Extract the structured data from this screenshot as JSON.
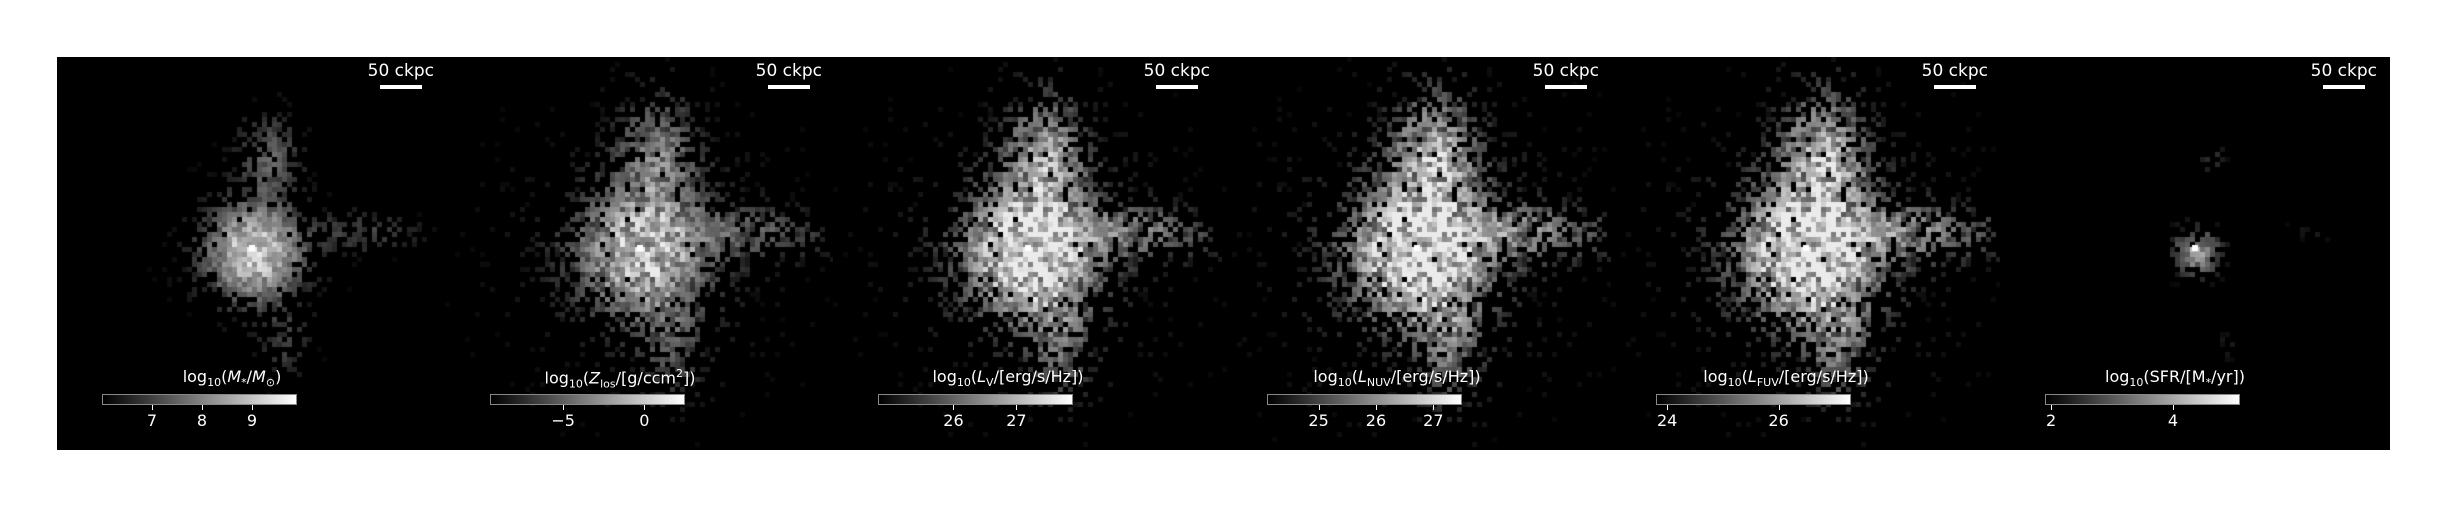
{
  "figure": {
    "panels": [
      {
        "id": "stellar-mass",
        "scale_label": "50 ckpc",
        "colorbar_title_html": "log<sub>10</sub>(<i>M</i><sub>*</sub>/<i>M</i><sub>⊙</sub>)",
        "colorbar_range": [
          6.0,
          9.9
        ],
        "ticks": [
          "7",
          "8",
          "9"
        ],
        "tick_values": [
          7,
          8,
          9
        ]
      },
      {
        "id": "metallicity",
        "scale_label": "50 ckpc",
        "colorbar_title_html": "log<sub>10</sub>(<i>Z</i><sub>los</sub>/[g/ccm<sup>2</sup>])",
        "colorbar_range": [
          -9.5,
          2.5
        ],
        "ticks": [
          "−5",
          "0"
        ],
        "tick_values": [
          -5,
          0
        ]
      },
      {
        "id": "v-band",
        "scale_label": "50 ckpc",
        "colorbar_title_html": "log<sub>10</sub>(<i>L</i><sub>V</sub>/[erg/s/Hz])",
        "colorbar_range": [
          24.8,
          27.9
        ],
        "ticks": [
          "26",
          "27"
        ],
        "tick_values": [
          26,
          27
        ]
      },
      {
        "id": "nuv",
        "scale_label": "50 ckpc",
        "colorbar_title_html": "log<sub>10</sub>(<i>L</i><sub>NUV</sub>/[erg/s/Hz])",
        "colorbar_range": [
          24.1,
          27.5
        ],
        "ticks": [
          "25",
          "26",
          "27"
        ],
        "tick_values": [
          25,
          26,
          27
        ]
      },
      {
        "id": "fuv",
        "scale_label": "50 ckpc",
        "colorbar_title_html": "log<sub>10</sub>(<i>L</i><sub>FUV</sub>/[erg/s/Hz])",
        "colorbar_range": [
          23.8,
          27.3
        ],
        "ticks": [
          "24",
          "26"
        ],
        "tick_values": [
          24,
          26
        ]
      },
      {
        "id": "sfr",
        "scale_label": "50 ckpc",
        "colorbar_title_html": "log<sub>10</sub>(SFR/[M<sub>*</sub>/yr])",
        "colorbar_range": [
          1.9,
          5.1
        ],
        "ticks": [
          "2",
          "4"
        ],
        "tick_values": [
          2,
          4
        ]
      }
    ]
  }
}
